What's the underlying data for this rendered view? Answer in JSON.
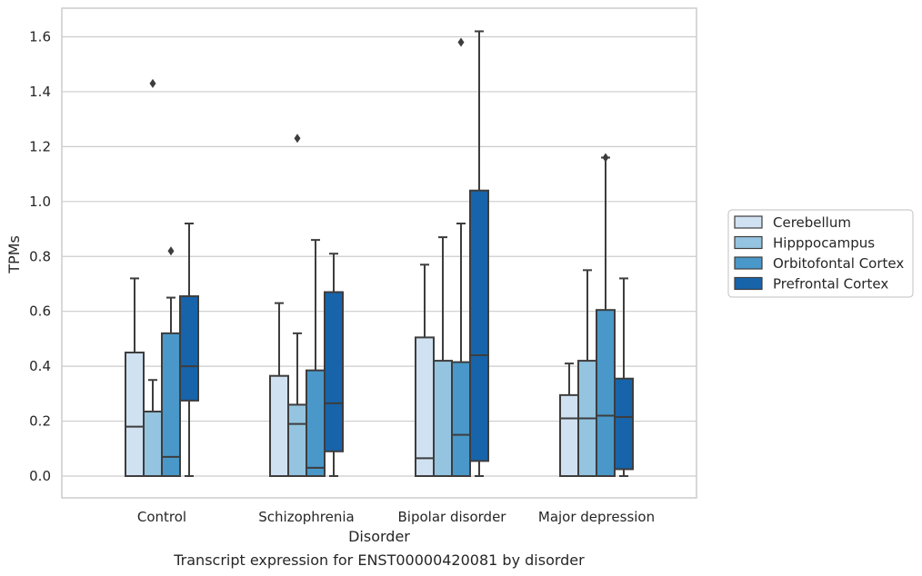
{
  "chart_data": {
    "type": "box",
    "title": "",
    "caption": "Transcript expression for ENST00000420081 by disorder",
    "xlabel": "Disorder",
    "ylabel": "TPMs",
    "ylim": [
      -0.08,
      1.7
    ],
    "yticks": [
      0.0,
      0.2,
      0.4,
      0.6,
      0.8,
      1.0,
      1.2,
      1.4,
      1.6
    ],
    "ytick_labels": [
      "0.0",
      "0.2",
      "0.4",
      "0.6",
      "0.8",
      "1.0",
      "1.2",
      "1.4",
      "1.6"
    ],
    "grid": "horizontal",
    "legend_position": "right",
    "categories": [
      "Control",
      "Schizophrenia",
      "Bipolar disorder",
      "Major depression"
    ],
    "series": [
      {
        "name": "Cerebellum",
        "color": "#d0e1f2",
        "boxes": [
          {
            "whisker_low": 0.0,
            "q1": 0.0,
            "median": 0.18,
            "q3": 0.45,
            "whisker_high": 0.72,
            "outliers": []
          },
          {
            "whisker_low": 0.0,
            "q1": 0.0,
            "median": 0.0,
            "q3": 0.365,
            "whisker_high": 0.63,
            "outliers": []
          },
          {
            "whisker_low": 0.0,
            "q1": 0.0,
            "median": 0.065,
            "q3": 0.505,
            "whisker_high": 0.77,
            "outliers": []
          },
          {
            "whisker_low": 0.0,
            "q1": 0.0,
            "median": 0.21,
            "q3": 0.295,
            "whisker_high": 0.41,
            "outliers": []
          }
        ]
      },
      {
        "name": "Hipppocampus",
        "color": "#94c4df",
        "boxes": [
          {
            "whisker_low": 0.0,
            "q1": 0.0,
            "median": 0.0,
            "q3": 0.235,
            "whisker_high": 0.35,
            "outliers": [
              1.43
            ]
          },
          {
            "whisker_low": 0.0,
            "q1": 0.0,
            "median": 0.19,
            "q3": 0.26,
            "whisker_high": 0.52,
            "outliers": [
              1.23
            ]
          },
          {
            "whisker_low": 0.0,
            "q1": 0.0,
            "median": 0.0,
            "q3": 0.42,
            "whisker_high": 0.87,
            "outliers": []
          },
          {
            "whisker_low": 0.0,
            "q1": 0.0,
            "median": 0.21,
            "q3": 0.42,
            "whisker_high": 0.75,
            "outliers": []
          }
        ]
      },
      {
        "name": "Orbitofontal Cortex",
        "color": "#4a98c9",
        "boxes": [
          {
            "whisker_low": 0.0,
            "q1": 0.0,
            "median": 0.07,
            "q3": 0.52,
            "whisker_high": 0.65,
            "outliers": [
              0.82
            ]
          },
          {
            "whisker_low": 0.0,
            "q1": 0.0,
            "median": 0.03,
            "q3": 0.385,
            "whisker_high": 0.86,
            "outliers": []
          },
          {
            "whisker_low": 0.0,
            "q1": 0.0,
            "median": 0.15,
            "q3": 0.415,
            "whisker_high": 0.92,
            "outliers": [
              1.58
            ]
          },
          {
            "whisker_low": 0.0,
            "q1": 0.0,
            "median": 0.22,
            "q3": 0.605,
            "whisker_high": 1.16,
            "outliers": [
              1.16
            ]
          }
        ]
      },
      {
        "name": "Prefrontal Cortex",
        "color": "#1764ab",
        "boxes": [
          {
            "whisker_low": 0.0,
            "q1": 0.275,
            "median": 0.4,
            "q3": 0.655,
            "whisker_high": 0.92,
            "outliers": []
          },
          {
            "whisker_low": 0.0,
            "q1": 0.09,
            "median": 0.265,
            "q3": 0.67,
            "whisker_high": 0.81,
            "outliers": []
          },
          {
            "whisker_low": 0.0,
            "q1": 0.055,
            "median": 0.44,
            "q3": 1.04,
            "whisker_high": 1.62,
            "outliers": []
          },
          {
            "whisker_low": 0.0,
            "q1": 0.025,
            "median": 0.215,
            "q3": 0.355,
            "whisker_high": 0.72,
            "outliers": []
          }
        ]
      }
    ]
  }
}
